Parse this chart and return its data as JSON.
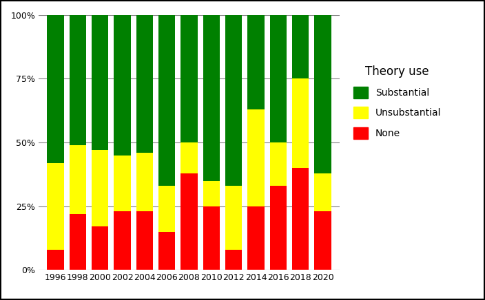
{
  "years": [
    1996,
    1998,
    2000,
    2002,
    2004,
    2006,
    2008,
    2010,
    2012,
    2014,
    2016,
    2018,
    2020
  ],
  "none": [
    0.08,
    0.22,
    0.17,
    0.23,
    0.23,
    0.15,
    0.38,
    0.25,
    0.08,
    0.25,
    0.33,
    0.4,
    0.23
  ],
  "unsubstantial": [
    0.34,
    0.27,
    0.3,
    0.22,
    0.23,
    0.18,
    0.12,
    0.1,
    0.25,
    0.38,
    0.17,
    0.35,
    0.15
  ],
  "substantial": [
    0.58,
    0.51,
    0.53,
    0.55,
    0.54,
    0.67,
    0.5,
    0.65,
    0.67,
    0.37,
    0.5,
    0.25,
    0.62
  ],
  "color_none": "#ff0000",
  "color_unsubstantial": "#ffff00",
  "color_substantial": "#008000",
  "bar_width": 1.5,
  "legend_title": "Theory use",
  "legend_labels": [
    "Substantial",
    "Unsubstantial",
    "None"
  ],
  "ytick_labels": [
    "0%",
    "25%",
    "50%",
    "75%",
    "100%"
  ],
  "ytick_vals": [
    0.0,
    0.25,
    0.5,
    0.75,
    1.0
  ],
  "background_color": "#ffffff",
  "grid_color": "#888888",
  "border_color": "#000000",
  "figsize": [
    7.04,
    4.36
  ],
  "dpi": 100
}
